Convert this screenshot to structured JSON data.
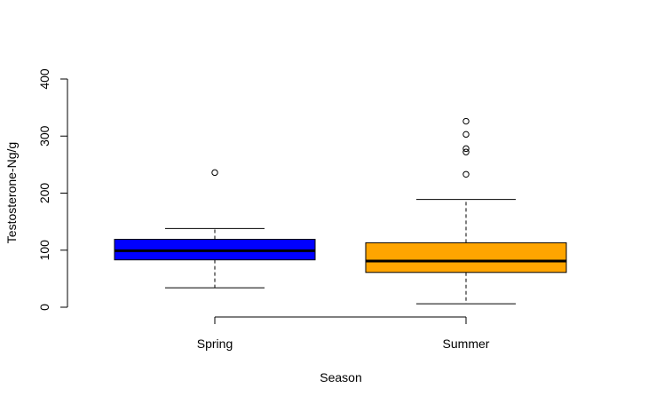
{
  "chart_data": {
    "type": "box",
    "title": "",
    "xlabel": "Season",
    "ylabel": "Testosterone-Ng/g",
    "ylim": [
      0,
      400
    ],
    "yticks": [
      "0",
      "100",
      "200",
      "300",
      "400"
    ],
    "categories": [
      "Spring",
      "Summer"
    ],
    "colors": [
      "#0000ff",
      "#ffa500"
    ],
    "boxes": [
      {
        "category": "Spring",
        "min": 34,
        "q1": 83,
        "median": 99,
        "q3": 119,
        "max": 138,
        "outliers": [
          236
        ]
      },
      {
        "category": "Summer",
        "min": 6,
        "q1": 61,
        "median": 81,
        "q3": 113,
        "max": 189,
        "outliers": [
          233,
          272,
          278,
          303,
          326
        ]
      }
    ]
  }
}
